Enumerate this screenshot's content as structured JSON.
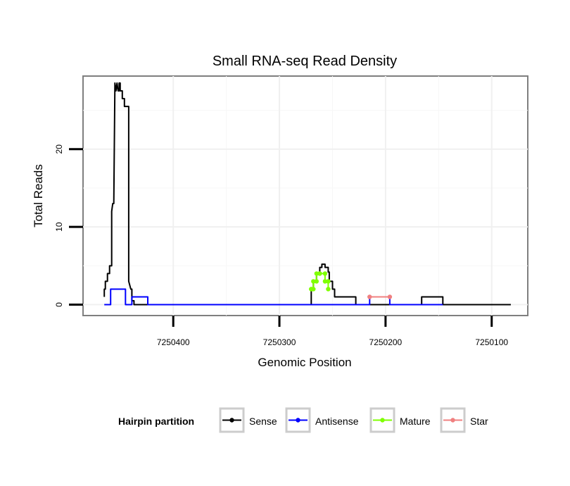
{
  "chart_data": {
    "type": "line",
    "title": "Small RNA-seq Read Density",
    "xlabel": "Genomic Position",
    "ylabel": "Total Reads",
    "x_reversed": true,
    "xlim": [
      7250066,
      7250485
    ],
    "ylim": [
      -1.4,
      29.4
    ],
    "x_ticks": [
      7250400,
      7250300,
      7250200,
      7250100
    ],
    "x_tick_labels": [
      "7250400",
      "7250300",
      "7250200",
      "7250100"
    ],
    "y_ticks": [
      0,
      10,
      20
    ],
    "y_tick_labels": [
      "0",
      "10",
      "20"
    ],
    "legend_title": "Hairpin partition",
    "legend_position": "bottom",
    "series": [
      {
        "name": "Sense",
        "color": "#000000",
        "marker": false,
        "x": [
          7250465,
          7250465,
          7250464,
          7250464,
          7250462,
          7250462,
          7250460,
          7250460,
          7250458,
          7250458,
          7250457,
          7250456,
          7250455,
          7250454,
          7250453,
          7250452,
          7250451,
          7250451,
          7250450,
          7250450,
          7250449,
          7250448,
          7250448,
          7250446,
          7250446,
          7250442,
          7250442,
          7250440,
          7250439,
          7250439,
          7250437,
          7250437,
          7250436,
          7250435,
          7250434,
          7250433,
          7250432,
          7250431,
          7250429,
          7250270,
          7250270,
          7250268,
          7250268,
          7250265,
          7250265,
          7250262,
          7250262,
          7250260,
          7250260,
          7250257,
          7250257,
          7250254,
          7250254,
          7250253,
          7250253,
          7250250,
          7250250,
          7250248,
          7250248,
          7250246,
          7250246,
          7250228,
          7250228,
          7250166,
          7250166,
          7250146,
          7250146,
          7250082
        ],
        "y": [
          1,
          2,
          2,
          3,
          3,
          4,
          4,
          5,
          5,
          12,
          13,
          13,
          28.5,
          27.5,
          28.5,
          27.5,
          27.5,
          28.5,
          28.5,
          27.5,
          27.5,
          27.5,
          26.5,
          26.5,
          25.5,
          25.5,
          3,
          2,
          2,
          0.5,
          0.5,
          0,
          0,
          0,
          0,
          0,
          0,
          0,
          0,
          0,
          2,
          2,
          3,
          3,
          4,
          4,
          4.8,
          4.8,
          5.2,
          5.2,
          4.8,
          4.8,
          4.2,
          4.2,
          3,
          3,
          2,
          2,
          1,
          1,
          1,
          1,
          0,
          0,
          1,
          1,
          0,
          0
        ]
      },
      {
        "name": "Antisense",
        "color": "#0000ff",
        "marker": false,
        "x": [
          7250465,
          7250459,
          7250459,
          7250445,
          7250445,
          7250439,
          7250439,
          7250424,
          7250424,
          7250228,
          7250228,
          7250215,
          7250215,
          7250196,
          7250196,
          7250146
        ],
        "y": [
          0,
          0,
          2,
          2,
          0,
          0,
          1,
          1,
          0,
          0,
          0,
          0,
          1,
          1,
          0,
          0
        ]
      },
      {
        "name": "Mature",
        "color": "#7fff00",
        "marker": true,
        "x": [
          7250270,
          7250270,
          7250268,
          7250268,
          7250265,
          7250265,
          7250262,
          7250262,
          7250257,
          7250257,
          7250254,
          7250254
        ],
        "y": [
          2,
          2,
          2,
          3,
          3,
          4,
          4,
          4,
          4,
          3,
          3,
          2
        ]
      },
      {
        "name": "Star",
        "color": "#f08080",
        "marker": true,
        "x": [
          7250215,
          7250196
        ],
        "y": [
          1,
          1
        ]
      }
    ]
  }
}
